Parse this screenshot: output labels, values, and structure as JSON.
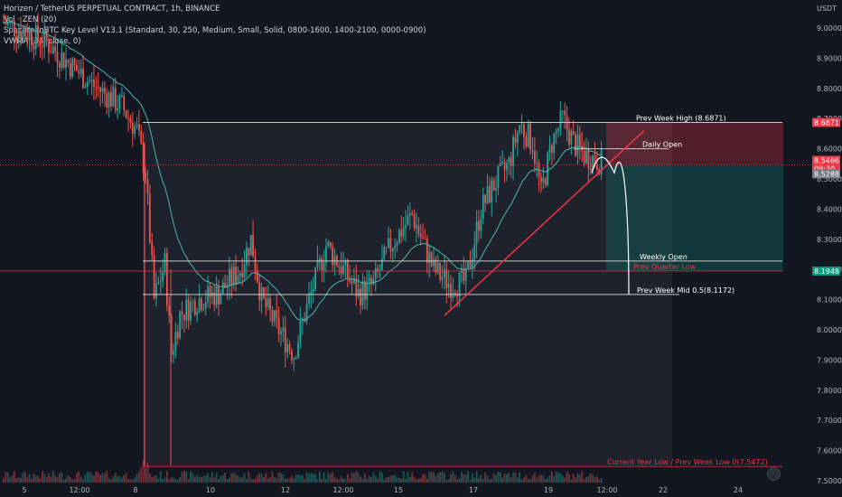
{
  "header": {
    "title": "Horizen / TetherUS PERPETUAL CONTRACT, 1h, BINANCE",
    "vol": "Vol · ZEN (20)",
    "indicator1": "SpacemanBTC Key Level V13.1 (Standard, 30, 250, Medium, Small, Solid, 0800-1600, 1400-2100, 0000-0900)",
    "indicator2": "VWMA (34, close, 0)"
  },
  "axis": {
    "currency": "USDT"
  },
  "colors": {
    "bg": "#131722",
    "up": "#26a69a",
    "down": "#ef5350",
    "level": "#c8c8c8",
    "trend": "#f23645",
    "vwma": "#4db6ac"
  },
  "chart_data": {
    "type": "candlestick",
    "ylim": [
      7.5,
      9.05
    ],
    "y_ticks": [
      "9.0000",
      "8.9000",
      "8.8000",
      "8.7000",
      "8.6000",
      "8.5000",
      "8.4000",
      "8.3000",
      "8.2000",
      "8.1000",
      "8.0000",
      "7.9000",
      "7.8000",
      "7.7000",
      "7.6000",
      "7.5000"
    ],
    "x_ticks": [
      "5",
      "12:00",
      "8",
      "10",
      "12",
      "12:00",
      "15",
      "17",
      "19",
      "12:00",
      "22",
      "24"
    ],
    "levels": [
      {
        "label": "Prev Week High",
        "value_label": "(8.6871)",
        "value": 8.6871
      },
      {
        "label": "Daily Open",
        "value": 8.6
      },
      {
        "label": "Weekly Open",
        "value": 8.228
      },
      {
        "label": "Prev Quarter Low",
        "value": 8.195
      },
      {
        "label": "Prev Week Mid",
        "value_label": "0.5(8.1172)",
        "value": 8.1172
      },
      {
        "label": "Current Year Low / Prev Week Low",
        "value_label": "0(7.5472)",
        "value": 7.5472
      }
    ],
    "price_labels": [
      "8.6871",
      "8.5466",
      "09:30",
      "8.5288",
      "8.1948"
    ],
    "current_price": 8.5466,
    "position": {
      "entry": 8.5466,
      "stop": 8.6871,
      "target": 8.1948
    },
    "trendline": {
      "from": [
        8.0473,
        "16 00:00"
      ],
      "to": [
        8.66,
        "20 18:00"
      ]
    }
  }
}
